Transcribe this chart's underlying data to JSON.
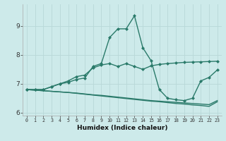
{
  "xlabel": "Humidex (Indice chaleur)",
  "x": [
    0,
    1,
    2,
    3,
    4,
    5,
    6,
    7,
    8,
    9,
    10,
    11,
    12,
    13,
    14,
    15,
    16,
    17,
    18,
    19,
    20,
    21,
    22,
    23
  ],
  "line1": [
    6.8,
    6.8,
    6.8,
    6.9,
    7.0,
    7.1,
    7.25,
    7.3,
    7.55,
    7.65,
    7.7,
    7.6,
    7.7,
    7.6,
    7.5,
    7.62,
    7.67,
    7.7,
    7.72,
    7.74,
    7.75,
    7.76,
    7.77,
    7.78
  ],
  "line2": [
    6.8,
    6.8,
    6.8,
    6.9,
    7.0,
    7.05,
    7.15,
    7.2,
    7.6,
    7.7,
    8.6,
    8.9,
    8.9,
    9.35,
    8.25,
    7.8,
    6.8,
    6.5,
    6.45,
    6.42,
    6.5,
    7.1,
    7.22,
    7.48
  ],
  "line3": [
    6.8,
    6.78,
    6.76,
    6.74,
    6.72,
    6.7,
    6.68,
    6.65,
    6.62,
    6.6,
    6.57,
    6.54,
    6.51,
    6.48,
    6.45,
    6.42,
    6.4,
    6.38,
    6.36,
    6.34,
    6.32,
    6.3,
    6.28,
    6.42
  ],
  "line4": [
    6.8,
    6.78,
    6.76,
    6.74,
    6.72,
    6.7,
    6.67,
    6.64,
    6.61,
    6.58,
    6.55,
    6.52,
    6.49,
    6.46,
    6.43,
    6.4,
    6.38,
    6.35,
    6.32,
    6.3,
    6.27,
    6.25,
    6.22,
    6.38
  ],
  "color": "#2a7a6a",
  "bg_color": "#cdeaea",
  "grid_color": "#b8d8d8",
  "ylim": [
    5.9,
    9.75
  ],
  "yticks": [
    6,
    7,
    8,
    9
  ],
  "xticks": [
    0,
    1,
    2,
    3,
    4,
    5,
    6,
    7,
    8,
    9,
    10,
    11,
    12,
    13,
    14,
    15,
    16,
    17,
    18,
    19,
    20,
    21,
    22,
    23
  ],
  "marker": "D",
  "markersize": 2.0,
  "linewidth": 1.0
}
